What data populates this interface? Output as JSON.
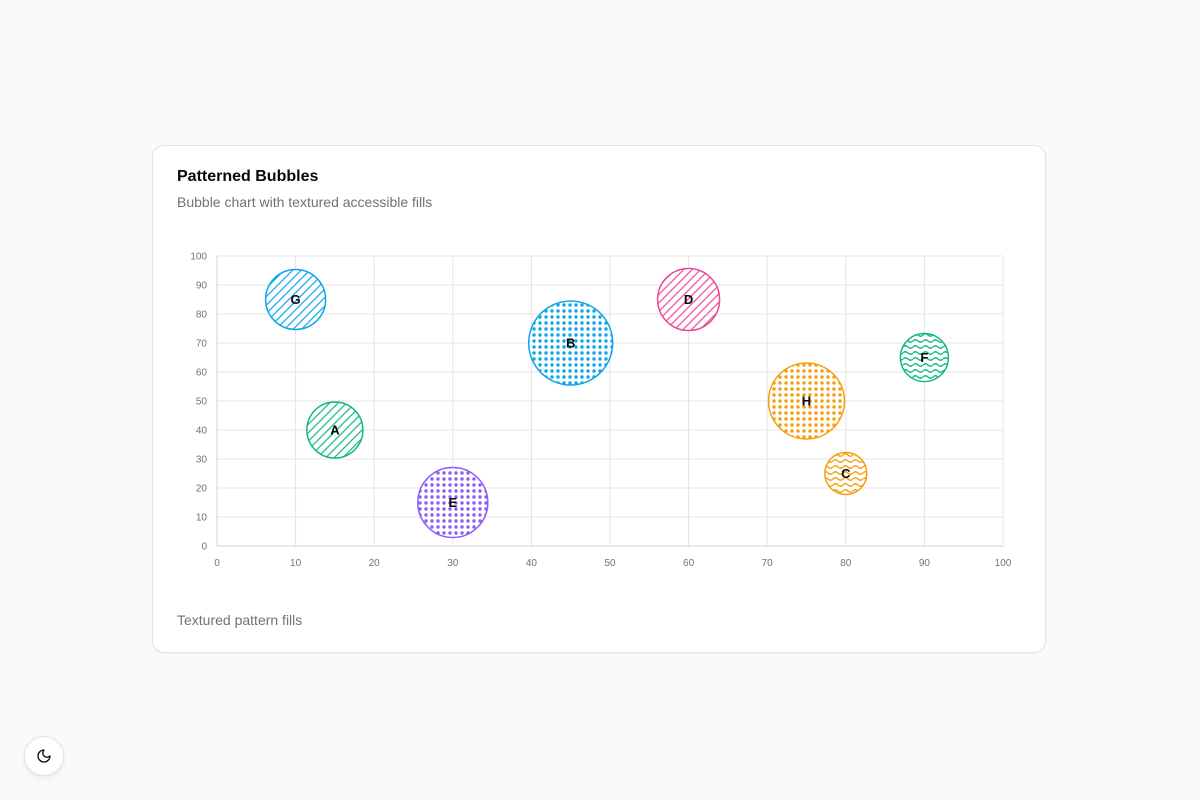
{
  "card": {
    "title": "Patterned Bubbles",
    "subtitle": "Bubble chart with textured accessible fills",
    "footer": "Textured pattern fills"
  },
  "theme_toggle": {
    "icon": "moon-icon"
  },
  "colors": {
    "grid": "#e4e4e7",
    "axis": "#d4d4d8",
    "tick_text": "#71717a"
  },
  "chart_data": {
    "type": "scatter",
    "title": "",
    "xlabel": "",
    "ylabel": "",
    "xlim": [
      0,
      100
    ],
    "ylim": [
      0,
      100
    ],
    "x_ticks": [
      0,
      10,
      20,
      30,
      40,
      50,
      60,
      70,
      80,
      90,
      100
    ],
    "y_ticks": [
      0,
      10,
      20,
      30,
      40,
      50,
      60,
      70,
      80,
      90,
      100
    ],
    "grid": true,
    "points": [
      {
        "label": "G",
        "x": 10,
        "y": 85,
        "size": 30,
        "color": "#0ea5e9",
        "pattern": "diagonal-stripes"
      },
      {
        "label": "A",
        "x": 15,
        "y": 40,
        "size": 28,
        "color": "#10b981",
        "pattern": "diagonal-stripes"
      },
      {
        "label": "E",
        "x": 30,
        "y": 15,
        "size": 35,
        "color": "#8b5cf6",
        "pattern": "dots"
      },
      {
        "label": "B",
        "x": 45,
        "y": 70,
        "size": 42,
        "color": "#0ea5e9",
        "pattern": "dots"
      },
      {
        "label": "D",
        "x": 60,
        "y": 85,
        "size": 31,
        "color": "#ec4899",
        "pattern": "diagonal-stripes"
      },
      {
        "label": "H",
        "x": 75,
        "y": 50,
        "size": 38,
        "color": "#f59e0b",
        "pattern": "dots"
      },
      {
        "label": "C",
        "x": 80,
        "y": 25,
        "size": 21,
        "color": "#f59e0b",
        "pattern": "waves"
      },
      {
        "label": "F",
        "x": 90,
        "y": 65,
        "size": 24,
        "color": "#10b981",
        "pattern": "waves"
      }
    ]
  }
}
